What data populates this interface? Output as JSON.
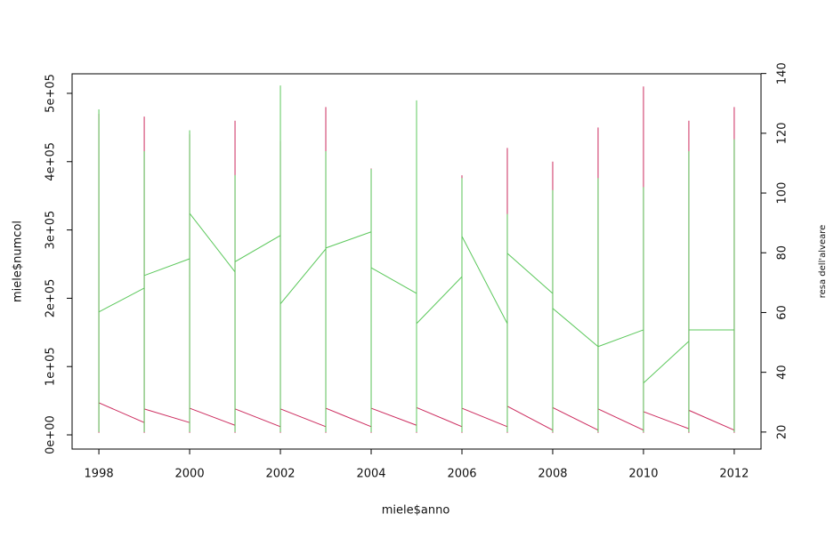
{
  "chart_data": {
    "type": "line",
    "xlabel": "miele$anno",
    "ylabel": "miele$numcol",
    "y2label": "resa dell'alveare",
    "xlim": [
      1997.41,
      2012.59
    ],
    "xticks": [
      1998,
      2000,
      2002,
      2004,
      2006,
      2008,
      2010,
      2012
    ],
    "ylim": [
      -20800,
      528600
    ],
    "yticks": [
      {
        "value": 0,
        "label": "0e+00"
      },
      {
        "value": 100000,
        "label": "1e+05"
      },
      {
        "value": 200000,
        "label": "2e+05"
      },
      {
        "value": 300000,
        "label": "3e+05"
      },
      {
        "value": 400000,
        "label": "4e+05"
      },
      {
        "value": 500000,
        "label": "5e+05"
      }
    ],
    "y2lim": [
      14.3,
      139.9
    ],
    "y2ticks": [
      20,
      40,
      60,
      80,
      100,
      120,
      140
    ],
    "x": [
      1998,
      1998,
      1998,
      1999,
      1999,
      1999,
      1999,
      2000,
      2000,
      2000,
      2000,
      2001,
      2001,
      2001,
      2001,
      2002,
      2002,
      2002,
      2002,
      2003,
      2003,
      2003,
      2003,
      2004,
      2004,
      2004,
      2004,
      2005,
      2005,
      2005,
      2005,
      2006,
      2006,
      2006,
      2006,
      2007,
      2007,
      2007,
      2007,
      2008,
      2008,
      2008,
      2008,
      2009,
      2009,
      2009,
      2009,
      2010,
      2010,
      2010,
      2010,
      2011,
      2011,
      2011,
      2011,
      2012,
      2012,
      2012
    ],
    "series": [
      {
        "color": "#cc2b5e",
        "axis": "y",
        "values": [
          3000,
          470000,
          47000,
          18000,
          3000,
          466000,
          38000,
          18000,
          3000,
          440000,
          39000,
          14000,
          3000,
          460000,
          38000,
          12000,
          3000,
          430000,
          38000,
          12000,
          3000,
          480000,
          39000,
          12000,
          3000,
          390000,
          39000,
          14000,
          3000,
          440000,
          40000,
          12000,
          3000,
          380000,
          39000,
          12000,
          3000,
          420000,
          42000,
          7000,
          3000,
          400000,
          40000,
          7000,
          3000,
          450000,
          38000,
          7000,
          3000,
          510000,
          34000,
          9000,
          3000,
          460000,
          36000,
          7000,
          3000,
          480000
        ]
      },
      {
        "color": "#5cc85c",
        "axis": "y2",
        "values": [
          20,
          128,
          60.2,
          68.2,
          20,
          114,
          72.4,
          78,
          20,
          121,
          93.2,
          73.6,
          20,
          106,
          77,
          85.8,
          20,
          136,
          62.9,
          81.3,
          20,
          114,
          81.6,
          87,
          20,
          108,
          75,
          66.4,
          20,
          131,
          56.3,
          72,
          20,
          105,
          85.5,
          56.3,
          20,
          93,
          79.8,
          66.4,
          20,
          101,
          61.4,
          48.6,
          20,
          105,
          48.6,
          54.2,
          20,
          102,
          36.4,
          50.4,
          20,
          114,
          54.2,
          54.2,
          20,
          118
        ]
      }
    ]
  }
}
